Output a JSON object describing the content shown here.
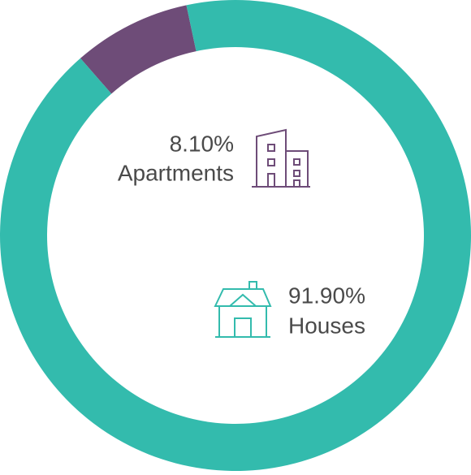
{
  "chart_data": {
    "type": "pie",
    "categories": [
      "Apartments",
      "Houses"
    ],
    "values": [
      8.1,
      91.9
    ],
    "value_labels": [
      "8.10%",
      "91.90%"
    ],
    "colors": [
      "#6e4c78",
      "#33bbad"
    ]
  }
}
